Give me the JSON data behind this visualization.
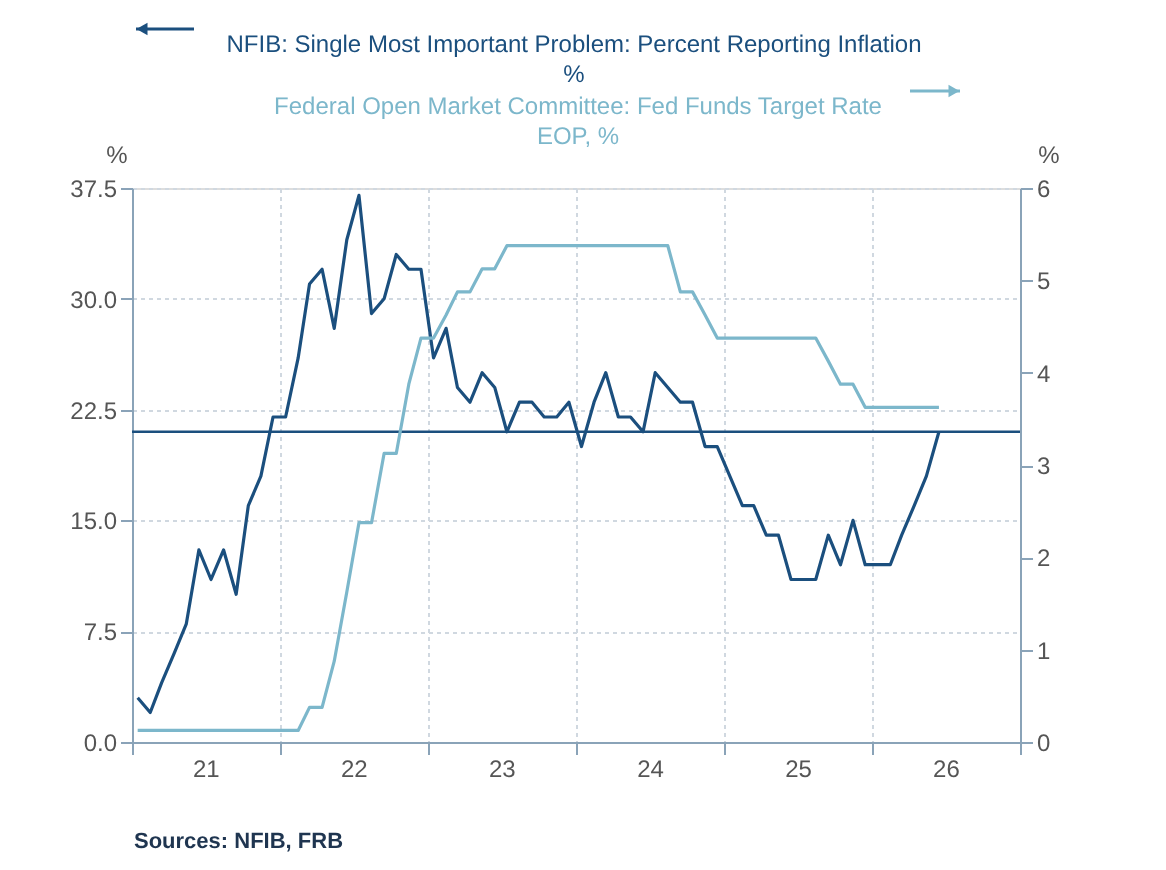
{
  "chart_data": {
    "type": "line",
    "x": [
      "2021-01-15",
      "2021-02-15",
      "2021-03-15",
      "2021-04-15",
      "2021-05-15",
      "2021-06-15",
      "2021-07-15",
      "2021-08-15",
      "2021-09-15",
      "2021-10-15",
      "2021-11-15",
      "2021-12-15",
      "2022-01-15",
      "2022-02-15",
      "2022-03-15",
      "2022-04-15",
      "2022-05-15",
      "2022-06-15",
      "2022-07-15",
      "2022-08-15",
      "2022-09-15",
      "2022-10-15",
      "2022-11-15",
      "2022-12-15",
      "2023-01-15",
      "2023-02-15",
      "2023-03-15",
      "2023-04-15",
      "2023-05-15",
      "2023-06-15",
      "2023-07-15",
      "2023-08-15",
      "2023-09-15",
      "2023-10-15",
      "2023-11-15",
      "2023-12-15",
      "2024-01-15",
      "2024-02-15",
      "2024-03-15",
      "2024-04-15",
      "2024-05-15",
      "2024-06-15",
      "2024-07-15",
      "2024-08-15",
      "2024-09-15",
      "2024-10-15",
      "2024-11-15",
      "2024-12-15",
      "2025-01-15",
      "2025-02-15",
      "2025-03-15",
      "2025-04-15",
      "2025-05-15",
      "2025-06-15",
      "2025-07-15",
      "2025-08-15",
      "2025-09-15",
      "2025-10-15",
      "2025-11-15",
      "2025-12-15",
      "2026-01-15",
      "2026-02-15",
      "2026-03-15",
      "2026-04-15",
      "2026-05-15",
      "2026-06-15"
    ],
    "series": [
      {
        "name": "NFIB: Single Most Important Problem: Percent Reporting Inflation\n%",
        "color": "#1b4f7e",
        "values": [
          3,
          2,
          4,
          6,
          8,
          13,
          11,
          13,
          10,
          16,
          18,
          22,
          22,
          26,
          31,
          32,
          28,
          34,
          37,
          29,
          30,
          33,
          32,
          32,
          26,
          28,
          24,
          23,
          25,
          24,
          21,
          23,
          23,
          22,
          22,
          23,
          20,
          23,
          25,
          22,
          22,
          21,
          25,
          24,
          23,
          23,
          20,
          20,
          18,
          16,
          16,
          14,
          14,
          11,
          11,
          11,
          14,
          12,
          15,
          12,
          12,
          12,
          14,
          16,
          18,
          21
        ]
      },
      {
        "name": "Federal Open Market Committee: Fed Funds Target Rate\nEOP, %",
        "color": "#7cb7cb",
        "axis": "y2",
        "values": [
          0.125,
          0.125,
          0.125,
          0.125,
          0.125,
          0.125,
          0.125,
          0.125,
          0.125,
          0.125,
          0.125,
          0.125,
          0.125,
          0.125,
          0.375,
          0.375,
          0.875,
          1.625,
          2.375,
          2.375,
          3.125,
          3.125,
          3.875,
          4.375,
          4.375,
          4.625,
          4.875,
          4.875,
          5.125,
          5.125,
          5.375,
          5.375,
          5.375,
          5.375,
          5.375,
          5.375,
          5.375,
          5.375,
          5.375,
          5.375,
          5.375,
          5.375,
          5.375,
          5.375,
          4.875,
          4.875,
          4.625,
          4.375,
          4.375,
          4.375,
          4.375,
          4.375,
          4.375,
          4.375,
          4.375,
          4.375,
          4.125,
          3.875,
          3.875,
          3.625,
          3.625,
          3.625,
          3.625,
          3.625,
          3.625,
          3.625
        ]
      }
    ],
    "ylabel": "%",
    "y2label": "%",
    "xlim": [
      "2021-01-01",
      "2027-01-01"
    ],
    "xticks": [
      {
        "value": "2021-01-01",
        "label": null
      },
      {
        "value": "2021-07-01",
        "label": "21"
      },
      {
        "value": "2022-01-01",
        "label": null
      },
      {
        "value": "2022-07-01",
        "label": "22"
      },
      {
        "value": "2023-01-01",
        "label": null
      },
      {
        "value": "2023-07-01",
        "label": "23"
      },
      {
        "value": "2024-01-01",
        "label": null
      },
      {
        "value": "2024-07-01",
        "label": "24"
      },
      {
        "value": "2025-01-01",
        "label": null
      },
      {
        "value": "2025-07-01",
        "label": "25"
      },
      {
        "value": "2026-01-01",
        "label": null
      },
      {
        "value": "2026-07-01",
        "label": "26"
      },
      {
        "value": "2027-01-01",
        "label": null
      }
    ],
    "ylim": [
      0,
      37.5
    ],
    "yticks": [
      {
        "value": 0,
        "label": "0.0"
      },
      7.5,
      {
        "value": 15,
        "label": "15.0"
      },
      22.5,
      {
        "value": 30,
        "label": "30.0"
      },
      37.5
    ],
    "y2lim": [
      0,
      6
    ],
    "y2ticks": [
      0,
      1,
      2,
      3,
      4,
      5,
      6
    ],
    "ref_lines": [
      {
        "axis": "y",
        "value": 21,
        "color": "#1b4f7e"
      }
    ],
    "grid": true,
    "legend": "top",
    "annotations": [
      "Sources:  NFIB, FRB"
    ]
  }
}
